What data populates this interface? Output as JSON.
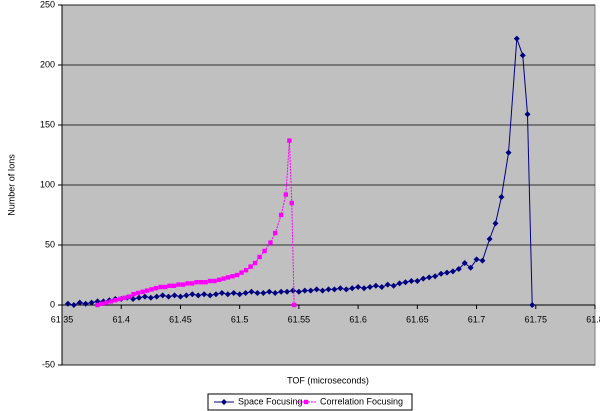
{
  "chart_data": {
    "type": "line",
    "x_label": "TOF (microseconds)",
    "y_label": "Number of Ions",
    "xlim": [
      61.35,
      61.8
    ],
    "xticks": [
      61.35,
      61.4,
      61.45,
      61.5,
      61.55,
      61.6,
      61.65,
      61.7,
      61.75,
      61.8
    ],
    "ylim": [
      -50,
      250
    ],
    "yticks": [
      -50,
      0,
      50,
      100,
      150,
      200,
      250
    ],
    "grid": true,
    "legend": "bottom",
    "series": [
      {
        "name": "Space Focusing",
        "color": "#000080",
        "marker": "diamond",
        "x": [
          61.355,
          61.36,
          61.365,
          61.37,
          61.375,
          61.38,
          61.385,
          61.39,
          61.395,
          61.4,
          61.405,
          61.41,
          61.415,
          61.42,
          61.425,
          61.43,
          61.435,
          61.44,
          61.445,
          61.45,
          61.455,
          61.46,
          61.465,
          61.47,
          61.475,
          61.48,
          61.485,
          61.49,
          61.495,
          61.5,
          61.505,
          61.51,
          61.515,
          61.52,
          61.525,
          61.53,
          61.535,
          61.54,
          61.545,
          61.55,
          61.555,
          61.56,
          61.565,
          61.57,
          61.575,
          61.58,
          61.585,
          61.59,
          61.595,
          61.6,
          61.605,
          61.61,
          61.615,
          61.62,
          61.625,
          61.63,
          61.635,
          61.64,
          61.645,
          61.65,
          61.655,
          61.66,
          61.665,
          61.67,
          61.675,
          61.68,
          61.685,
          61.69,
          61.695,
          61.7,
          61.705,
          61.711,
          61.716,
          61.721,
          61.727,
          61.734,
          61.739,
          61.743,
          61.747
        ],
        "values": [
          1,
          0,
          2,
          1,
          2,
          3,
          3,
          4,
          5,
          5,
          6,
          5,
          6,
          7,
          6,
          7,
          8,
          7,
          8,
          7,
          8,
          9,
          8,
          9,
          8,
          9,
          10,
          9,
          10,
          9,
          10,
          11,
          10,
          10,
          11,
          10,
          11,
          11,
          12,
          11,
          12,
          12,
          13,
          12,
          13,
          13,
          14,
          13,
          14,
          15,
          14,
          15,
          16,
          15,
          17,
          16,
          18,
          19,
          20,
          20,
          22,
          23,
          24,
          26,
          27,
          28,
          30,
          35,
          31,
          38,
          37,
          55,
          68,
          90,
          127,
          222,
          208,
          159,
          0
        ]
      },
      {
        "name": "Correlation Focusing",
        "color": "#ff00ff",
        "marker": "square",
        "x": [
          61.38,
          61.3838,
          61.3876,
          61.3914,
          61.3952,
          61.399,
          61.4028,
          61.4066,
          61.4104,
          61.4142,
          61.418,
          61.4218,
          61.4256,
          61.4294,
          61.4332,
          61.437,
          61.4408,
          61.4446,
          61.4484,
          61.4522,
          61.456,
          61.4598,
          61.4636,
          61.4674,
          61.4712,
          61.475,
          61.4788,
          61.4826,
          61.4864,
          61.4902,
          61.494,
          61.4978,
          61.5016,
          61.5054,
          61.5092,
          61.513,
          61.5168,
          61.521,
          61.526,
          61.53,
          61.535,
          61.539,
          61.542,
          61.544,
          61.546
        ],
        "values": [
          0,
          1,
          2,
          3,
          4,
          5,
          6,
          7,
          9,
          10,
          11,
          12,
          13,
          14,
          15,
          15,
          16,
          16,
          17,
          17,
          18,
          18,
          19,
          19,
          19,
          20,
          20,
          21,
          22,
          23,
          24,
          25,
          27,
          29,
          32,
          35,
          40,
          45,
          52,
          60,
          75,
          92,
          137,
          85,
          0
        ]
      }
    ]
  }
}
